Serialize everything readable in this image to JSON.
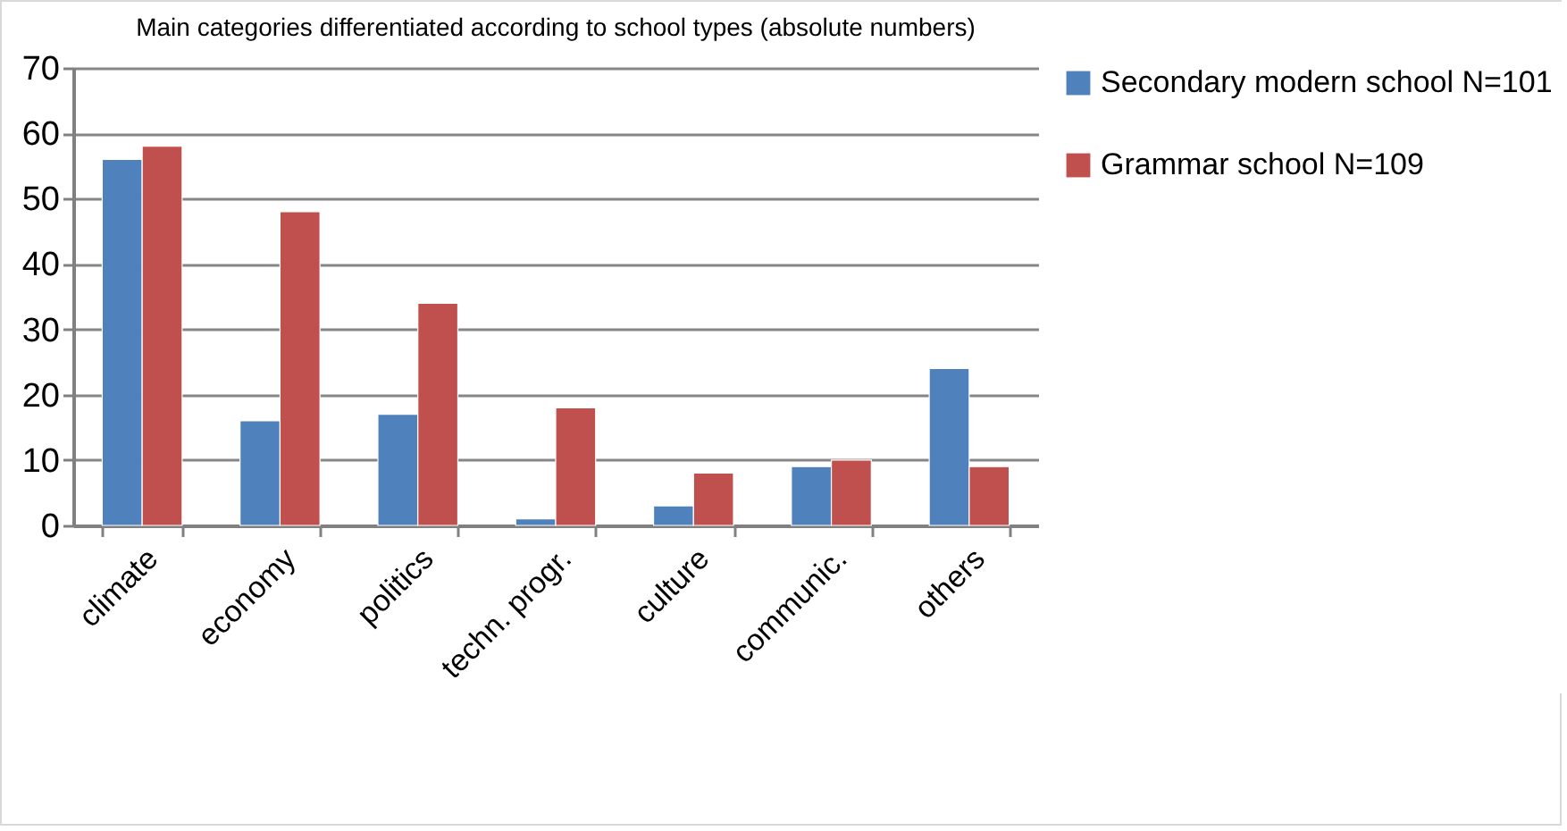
{
  "chart_data": {
    "type": "bar",
    "title": "Main categories differentiated according to school types (absolute numbers)",
    "categories": [
      "climate",
      "economy",
      "politics",
      "techn. progr.",
      "culture",
      "communic.",
      "others"
    ],
    "series": [
      {
        "name": "Secondary modern school N=101",
        "color": "#4f81bd",
        "values": [
          56,
          16,
          17,
          1,
          3,
          9,
          24
        ]
      },
      {
        "name": "Grammar school N=109",
        "color": "#c0504d",
        "values": [
          58,
          48,
          34,
          18,
          8,
          10,
          9
        ]
      }
    ],
    "ylim": [
      0,
      70
    ],
    "yticks": [
      0,
      10,
      20,
      30,
      40,
      50,
      60,
      70
    ],
    "grid": "y",
    "legend": "right"
  }
}
